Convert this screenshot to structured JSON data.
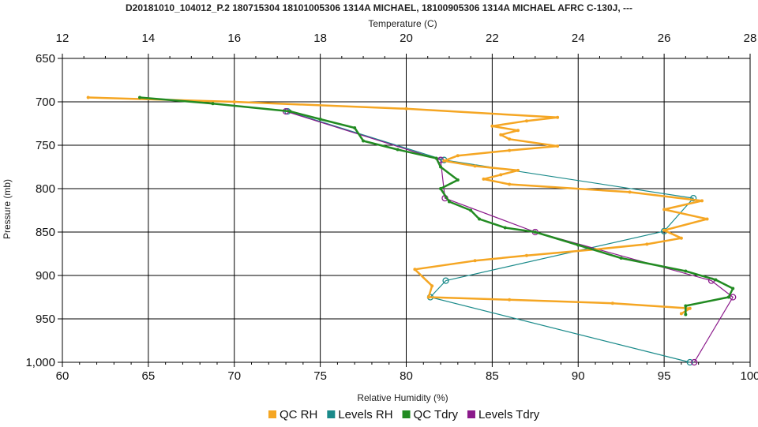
{
  "chart_data": {
    "type": "line",
    "title": "D20181010_104012_P.2 180715304 18101005306 1314A MICHAEL, 18100905306 1314A MICHAEL AFRC C-130J, ---",
    "top_axis_label": "Temperature (C)",
    "xlabel": "Relative Humidity (%)",
    "ylabel": "Pressure (mb)",
    "xlim": [
      60,
      100
    ],
    "top_xlim": [
      12,
      28
    ],
    "ylim": [
      650,
      1000
    ],
    "y_inverted": true,
    "grid": true,
    "legend_position": "bottom",
    "x_ticks": [
      "60",
      "65",
      "70",
      "75",
      "80",
      "85",
      "90",
      "95",
      "100"
    ],
    "top_ticks": [
      "12",
      "14",
      "16",
      "18",
      "20",
      "22",
      "24",
      "26",
      "28"
    ],
    "y_ticks": [
      "650",
      "700",
      "750",
      "800",
      "850",
      "900",
      "950",
      "1,000"
    ],
    "series": [
      {
        "name": "QC RH",
        "axis": "bottom",
        "color": "#f5a623",
        "marker": "dot",
        "points": [
          [
            61.5,
            695
          ],
          [
            70,
            700
          ],
          [
            80,
            708
          ],
          [
            88.8,
            718
          ],
          [
            87,
            722
          ],
          [
            85,
            728
          ],
          [
            86.5,
            733
          ],
          [
            85.5,
            738
          ],
          [
            86,
            743
          ],
          [
            88.8,
            751
          ],
          [
            86,
            756
          ],
          [
            83,
            762
          ],
          [
            82.2,
            768
          ],
          [
            84,
            774
          ],
          [
            86.5,
            779
          ],
          [
            85.5,
            784
          ],
          [
            84.5,
            789
          ],
          [
            86,
            795
          ],
          [
            93,
            804
          ],
          [
            97.2,
            814
          ],
          [
            95,
            824
          ],
          [
            97.5,
            835
          ],
          [
            95,
            848
          ],
          [
            96,
            857
          ],
          [
            94,
            864
          ],
          [
            91,
            870
          ],
          [
            87,
            877
          ],
          [
            84,
            883
          ],
          [
            80.5,
            893
          ],
          [
            81.5,
            912
          ],
          [
            81.3,
            925
          ],
          [
            86,
            928
          ],
          [
            92,
            932
          ],
          [
            96.5,
            938
          ],
          [
            96,
            944
          ]
        ]
      },
      {
        "name": "Levels RH",
        "axis": "bottom",
        "color": "#1a8a8a",
        "marker": "circle",
        "points": [
          [
            73.1,
            711
          ],
          [
            82.2,
            767
          ],
          [
            96.7,
            811
          ],
          [
            95,
            849
          ],
          [
            82.3,
            906
          ],
          [
            81.4,
            925
          ],
          [
            96.5,
            1000
          ]
        ]
      },
      {
        "name": "QC Tdry",
        "axis": "top",
        "color": "#228b22",
        "marker": "dot",
        "points": [
          [
            13.8,
            695
          ],
          [
            15.5,
            702
          ],
          [
            17.3,
            711
          ],
          [
            18,
            720
          ],
          [
            18.8,
            730
          ],
          [
            19,
            745
          ],
          [
            19.8,
            755
          ],
          [
            20.7,
            765
          ],
          [
            20.8,
            775
          ],
          [
            21.2,
            790
          ],
          [
            20.8,
            800
          ],
          [
            21,
            815
          ],
          [
            21.5,
            825
          ],
          [
            21.7,
            835
          ],
          [
            22.3,
            845
          ],
          [
            23,
            850
          ],
          [
            24,
            865
          ],
          [
            25,
            880
          ],
          [
            26.5,
            895
          ],
          [
            27.2,
            905
          ],
          [
            27.6,
            915
          ],
          [
            27.5,
            925
          ],
          [
            26.5,
            935
          ],
          [
            26.5,
            945
          ]
        ]
      },
      {
        "name": "Levels Tdry",
        "axis": "top",
        "color": "#8b1a8b",
        "marker": "circle",
        "points": [
          [
            17.2,
            711
          ],
          [
            20.8,
            767
          ],
          [
            20.9,
            811
          ],
          [
            23,
            850
          ],
          [
            27.1,
            906
          ],
          [
            27.6,
            925
          ],
          [
            26.7,
            1000
          ]
        ]
      }
    ]
  }
}
